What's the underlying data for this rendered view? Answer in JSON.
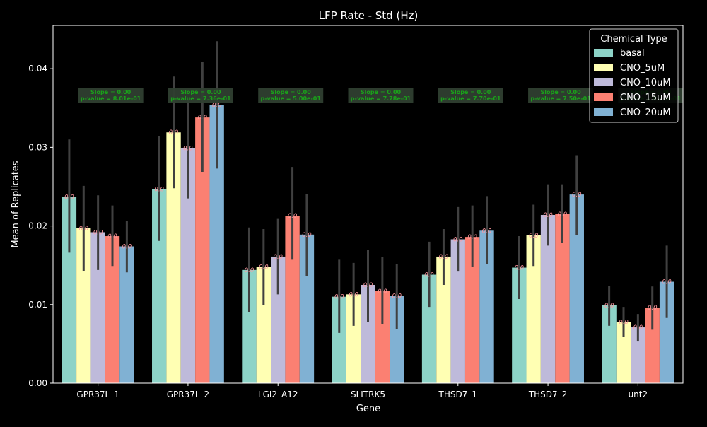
{
  "chart_data": {
    "type": "bar",
    "title": "LFP Rate - Std (Hz)",
    "xlabel": "Gene",
    "ylabel": "Mean of Replicates",
    "ylim": [
      0,
      0.0455
    ],
    "yticks": [
      0.0,
      0.01,
      0.02,
      0.03,
      0.04
    ],
    "ytick_labels": [
      "0.00",
      "0.01",
      "0.02",
      "0.03",
      "0.04"
    ],
    "categories": [
      "GPR37L_1",
      "GPR37L_2",
      "LGI2_A12",
      "SLITRK5",
      "THSD7_1",
      "THSD7_2",
      "unt2"
    ],
    "legend": {
      "title": "Chemical Type",
      "placement": "upper-right"
    },
    "bar_label": "0.0",
    "series": [
      {
        "name": "basal",
        "color": "#8dd3c7",
        "values": [
          0.0237,
          0.0247,
          0.0144,
          0.011,
          0.0138,
          0.0147,
          0.0099
        ],
        "err_low": [
          0.0166,
          0.0181,
          0.009,
          0.0064,
          0.0097,
          0.0107,
          0.0073
        ],
        "err_high": [
          0.031,
          0.0314,
          0.0198,
          0.0157,
          0.018,
          0.0187,
          0.0124
        ]
      },
      {
        "name": "CNO_5uM",
        "color": "#ffffb3",
        "values": [
          0.0197,
          0.0319,
          0.0148,
          0.0113,
          0.0161,
          0.0188,
          0.0078
        ],
        "err_low": [
          0.0143,
          0.0248,
          0.0099,
          0.0073,
          0.0125,
          0.0149,
          0.0059
        ],
        "err_high": [
          0.0251,
          0.039,
          0.0196,
          0.0153,
          0.0196,
          0.0227,
          0.0097
        ]
      },
      {
        "name": "CNO_10uM",
        "color": "#bebada",
        "values": [
          0.0192,
          0.0299,
          0.0161,
          0.0125,
          0.0183,
          0.0214,
          0.0071
        ],
        "err_low": [
          0.0144,
          0.0235,
          0.0113,
          0.0078,
          0.0142,
          0.0175,
          0.0053
        ],
        "err_high": [
          0.0239,
          0.0362,
          0.0209,
          0.017,
          0.0224,
          0.0253,
          0.0088
        ]
      },
      {
        "name": "CNO_15uM",
        "color": "#fb8072",
        "values": [
          0.0187,
          0.0338,
          0.0213,
          0.0117,
          0.0186,
          0.0215,
          0.0096
        ],
        "err_low": [
          0.0149,
          0.0268,
          0.0157,
          0.0075,
          0.0148,
          0.0178,
          0.0068
        ],
        "err_high": [
          0.0226,
          0.0409,
          0.0275,
          0.0161,
          0.0226,
          0.0253,
          0.0123
        ]
      },
      {
        "name": "CNO_20uM",
        "color": "#80b1d3",
        "values": [
          0.0174,
          0.0354,
          0.0189,
          0.0111,
          0.0194,
          0.024,
          0.0129
        ],
        "err_low": [
          0.0141,
          0.0273,
          0.0136,
          0.0069,
          0.0152,
          0.0188,
          0.0083
        ],
        "err_high": [
          0.0206,
          0.0435,
          0.0241,
          0.0152,
          0.0238,
          0.029,
          0.0175
        ]
      }
    ],
    "annotations": [
      {
        "category": "GPR37L_1",
        "lines": [
          "Slope = 0.00",
          "p-value = 8.01e-01"
        ]
      },
      {
        "category": "GPR37L_2",
        "lines": [
          "Slope = 0.00",
          "p-value = 7.36e-01"
        ]
      },
      {
        "category": "LGI2_A12",
        "lines": [
          "Slope = 0.00",
          "p-value = 5.00e-01"
        ]
      },
      {
        "category": "SLITRK5",
        "lines": [
          "Slope = 0.00",
          "p-value = 7.78e-01"
        ]
      },
      {
        "category": "THSD7_1",
        "lines": [
          "Slope = 0.00",
          "p-value = 7.70e-01"
        ]
      },
      {
        "category": "THSD7_2",
        "lines": [
          "Slope = 0.00",
          "p-value = 7.50e-01"
        ]
      },
      {
        "category": "unt2",
        "lines": [
          "Slope = 0.00",
          "p-value = 8.45e-01"
        ]
      }
    ]
  }
}
